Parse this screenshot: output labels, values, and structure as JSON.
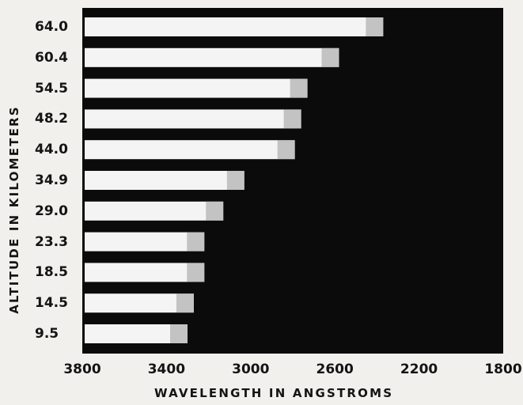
{
  "chart_data": {
    "type": "bar",
    "ylabel": "ALTITUDE IN KILOMETERS",
    "xlabel": "WAVELENGTH IN ANGSTROMS",
    "categories": [
      "64.0",
      "60.4",
      "54.5",
      "48.2",
      "44.0",
      "34.9",
      "29.0",
      "23.3",
      "18.5",
      "14.5",
      "9.5"
    ],
    "x_ticks": [
      "3800",
      "3400",
      "3000",
      "2600",
      "2200",
      "1800"
    ],
    "xlim": [
      3800,
      1800
    ],
    "series": [
      {
        "values": [
          2370,
          2580,
          2730,
          2760,
          2790,
          3030,
          3130,
          3220,
          3220,
          3270,
          3300
        ]
      }
    ],
    "background": "#0b0b0b",
    "bar_color": "#f4f4f4",
    "paper_color": "#f1f0ec"
  }
}
